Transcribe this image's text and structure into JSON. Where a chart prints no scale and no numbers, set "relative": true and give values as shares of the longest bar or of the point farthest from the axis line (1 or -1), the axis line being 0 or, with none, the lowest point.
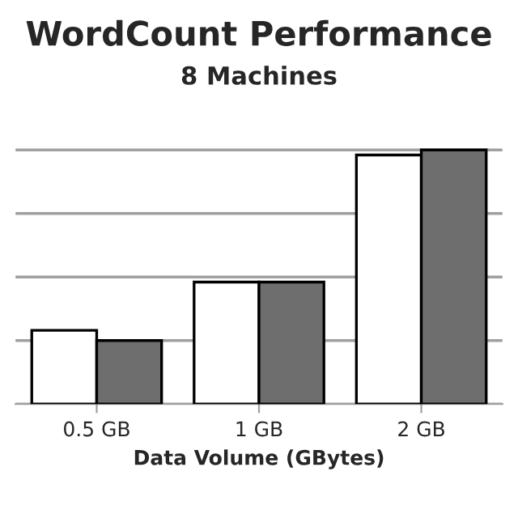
{
  "chart_data": {
    "type": "bar",
    "title": "WordCount Performance",
    "subtitle": "8 Machines",
    "xlabel": "Data Volume (GBytes)",
    "categories": [
      "0.5 GB",
      "1 GB",
      "2 GB"
    ],
    "relative": true,
    "grid": "y",
    "legend": false,
    "series": [
      {
        "color": "#ffffff",
        "values": [
          0.29,
          0.48,
          0.98
        ]
      },
      {
        "color": "#6e6e6e",
        "values": [
          0.25,
          0.48,
          1.0
        ]
      }
    ]
  }
}
